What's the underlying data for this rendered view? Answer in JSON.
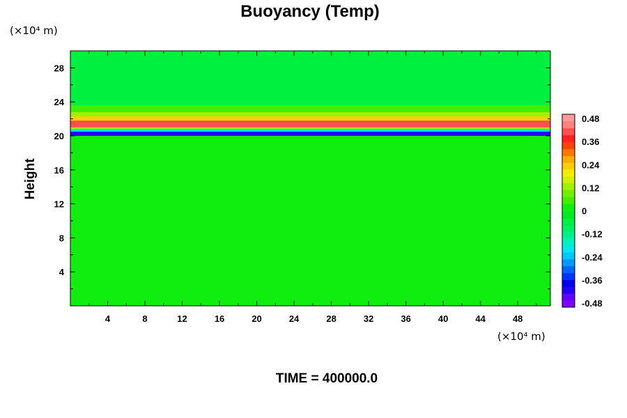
{
  "chart_data": {
    "type": "heatmap",
    "title": "Buoyancy (Temp)",
    "ylabel": "Height",
    "xlabel": "",
    "x_unit": "(×10⁴ m)",
    "y_unit": "(×10⁴ m)",
    "xlim": [
      0,
      51.5
    ],
    "ylim": [
      0,
      30
    ],
    "x_ticks": [
      "4",
      "8",
      "12",
      "16",
      "20",
      "24",
      "28",
      "32",
      "36",
      "40",
      "44",
      "48"
    ],
    "y_ticks": [
      "4",
      "8",
      "12",
      "16",
      "20",
      "24",
      "28"
    ],
    "colorbar": {
      "range": [
        -0.5,
        0.5
      ],
      "labels": [
        "0.48",
        "0.36",
        "0.24",
        "0.12",
        "0",
        "-0.12",
        "-0.24",
        "-0.36",
        "-0.48"
      ],
      "colors": [
        "#7f00ff",
        "#6600ff",
        "#2000ff",
        "#0000ee",
        "#0033ff",
        "#0066ff",
        "#0099ff",
        "#00c8ff",
        "#00e6ee",
        "#00f0c0",
        "#00f08c",
        "#00f060",
        "#00f040",
        "#00ee20",
        "#10ee10",
        "#40f000",
        "#70f000",
        "#a0f000",
        "#d0f000",
        "#f0f000",
        "#ffd000",
        "#ffaa00",
        "#ff7700",
        "#ff4400",
        "#ff2020",
        "#ff5050",
        "#ff8080",
        "#ff9a9a"
      ]
    },
    "background_value": 0.0,
    "bands": [
      {
        "y_from": 20.0,
        "y_to": 20.5,
        "value": -0.42
      },
      {
        "y_from": 20.5,
        "y_to": 20.8,
        "value": -0.18
      },
      {
        "y_from": 20.8,
        "y_to": 21.0,
        "value": 0.14
      },
      {
        "y_from": 21.0,
        "y_to": 21.8,
        "value": 0.4
      },
      {
        "y_from": 21.8,
        "y_to": 22.3,
        "value": 0.24
      },
      {
        "y_from": 22.3,
        "y_to": 22.8,
        "value": 0.13
      },
      {
        "y_from": 22.8,
        "y_to": 23.6,
        "value": 0.04
      },
      {
        "y_from": 23.6,
        "y_to": 30.0,
        "value": -0.05
      }
    ],
    "time_label": "TIME = 400000.0"
  }
}
